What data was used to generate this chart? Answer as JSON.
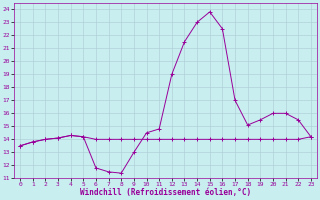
{
  "xlabel": "Windchill (Refroidissement éolien,°C)",
  "xlim": [
    -0.5,
    23.5
  ],
  "ylim": [
    11,
    24.5
  ],
  "yticks": [
    11,
    12,
    13,
    14,
    15,
    16,
    17,
    18,
    19,
    20,
    21,
    22,
    23,
    24
  ],
  "xticks": [
    0,
    1,
    2,
    3,
    4,
    5,
    6,
    7,
    8,
    9,
    10,
    11,
    12,
    13,
    14,
    15,
    16,
    17,
    18,
    19,
    20,
    21,
    22,
    23
  ],
  "line_color": "#990099",
  "bg_color": "#c8eef0",
  "grid_color": "#b0d0d8",
  "curve1_x": [
    0,
    1,
    2,
    3,
    4,
    5,
    6,
    7,
    8,
    9,
    10,
    11,
    12,
    13,
    14,
    15,
    16,
    17,
    18,
    19,
    20,
    21,
    22,
    23
  ],
  "curve1_y": [
    13.5,
    13.8,
    14.0,
    14.1,
    14.3,
    14.2,
    14.0,
    14.0,
    14.0,
    14.0,
    14.0,
    14.0,
    14.0,
    14.0,
    14.0,
    14.0,
    14.0,
    14.0,
    14.0,
    14.0,
    14.0,
    14.0,
    14.0,
    14.2
  ],
  "curve2_x": [
    0,
    1,
    2,
    3,
    4,
    5,
    6,
    7,
    8,
    9,
    10,
    11,
    12,
    13,
    14,
    15,
    16,
    17,
    18,
    19,
    20,
    21,
    22,
    23
  ],
  "curve2_y": [
    13.5,
    13.8,
    14.0,
    14.1,
    14.3,
    14.2,
    11.8,
    11.5,
    11.4,
    13.0,
    14.5,
    14.8,
    19.0,
    21.5,
    23.0,
    23.8,
    22.5,
    17.0,
    15.1,
    15.5,
    16.0,
    16.0,
    15.5,
    14.2
  ]
}
